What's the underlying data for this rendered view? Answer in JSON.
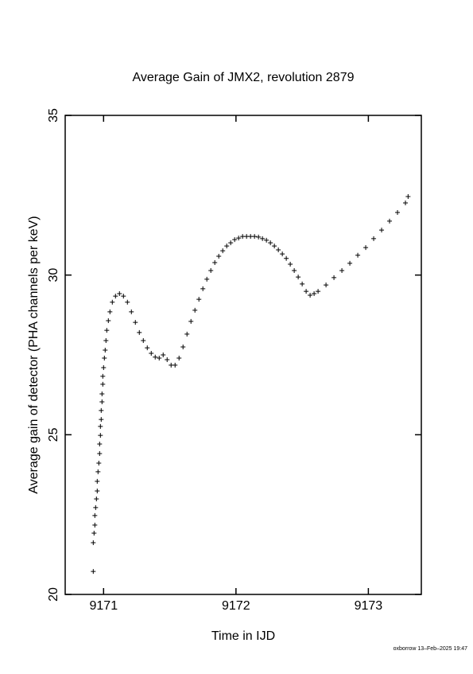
{
  "chart_data": {
    "type": "scatter",
    "title": "Average Gain of JMX2, revolution 2879",
    "xlabel": "Time in IJD",
    "ylabel": "Average gain of detector (PHA channels per keV)",
    "color": "#000000",
    "marker": "+",
    "xlim": [
      9170.71,
      9173.4
    ],
    "ylim": [
      20,
      35
    ],
    "xticks": [
      9171,
      9172,
      9173
    ],
    "yticks": [
      20,
      25,
      30,
      35
    ],
    "x": [
      9170.922,
      9170.922,
      9170.928,
      9170.934,
      9170.934,
      9170.94,
      9170.946,
      9170.952,
      9170.952,
      9170.958,
      9170.964,
      9170.97,
      9170.97,
      9170.976,
      9170.976,
      9170.982,
      9170.982,
      9170.988,
      9170.988,
      9170.994,
      9170.994,
      9171.0,
      9171.006,
      9171.012,
      9171.018,
      9171.024,
      9171.036,
      9171.048,
      9171.066,
      9171.09,
      9171.12,
      9171.15,
      9171.18,
      9171.21,
      9171.24,
      9171.27,
      9171.3,
      9171.33,
      9171.36,
      9171.39,
      9171.42,
      9171.45,
      9171.48,
      9171.51,
      9171.54,
      9171.57,
      9171.6,
      9171.63,
      9171.66,
      9171.69,
      9171.72,
      9171.75,
      9171.78,
      9171.81,
      9171.84,
      9171.87,
      9171.9,
      9171.93,
      9171.96,
      9171.99,
      9172.02,
      9172.05,
      9172.08,
      9172.11,
      9172.14,
      9172.17,
      9172.2,
      9172.23,
      9172.26,
      9172.29,
      9172.32,
      9172.35,
      9172.38,
      9172.41,
      9172.44,
      9172.47,
      9172.5,
      9172.53,
      9172.56,
      9172.59,
      9172.62,
      9172.68,
      9172.74,
      9172.8,
      9172.86,
      9172.92,
      9172.98,
      9173.04,
      9173.1,
      9173.16,
      9173.22,
      9173.28,
      9173.3
    ],
    "y": [
      20.72,
      21.62,
      21.92,
      22.17,
      22.47,
      22.72,
      22.99,
      23.24,
      23.54,
      23.84,
      24.11,
      24.41,
      24.71,
      24.98,
      25.26,
      25.48,
      25.76,
      26.03,
      26.28,
      26.58,
      26.83,
      27.1,
      27.4,
      27.65,
      27.95,
      28.27,
      28.57,
      28.85,
      29.15,
      29.34,
      29.42,
      29.34,
      29.15,
      28.85,
      28.52,
      28.2,
      27.95,
      27.72,
      27.55,
      27.43,
      27.4,
      27.5,
      27.35,
      27.18,
      27.18,
      27.4,
      27.75,
      28.15,
      28.55,
      28.9,
      29.24,
      29.57,
      29.87,
      30.14,
      30.39,
      30.59,
      30.76,
      30.91,
      31.01,
      31.11,
      31.16,
      31.21,
      31.21,
      31.21,
      31.21,
      31.19,
      31.14,
      31.09,
      31.01,
      30.91,
      30.79,
      30.66,
      30.52,
      30.34,
      30.14,
      29.94,
      29.72,
      29.49,
      29.37,
      29.42,
      29.49,
      29.69,
      29.92,
      30.14,
      30.37,
      30.62,
      30.86,
      31.14,
      31.41,
      31.69,
      31.96,
      32.26,
      32.46
    ]
  },
  "footer": "oxborrow 13–Feb–2025 19:47"
}
